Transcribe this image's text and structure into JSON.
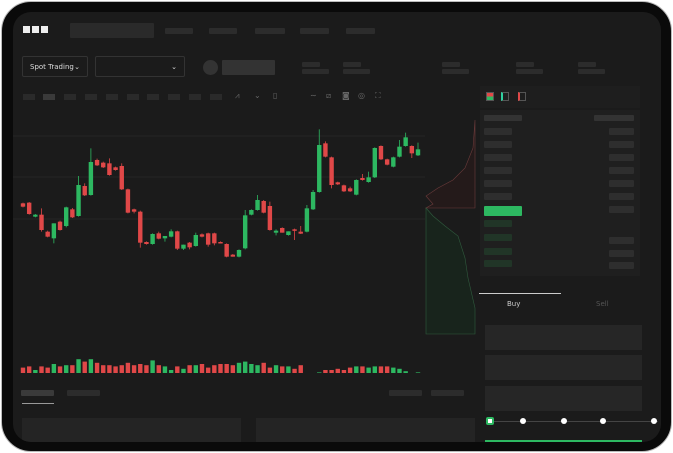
{
  "brand": {
    "logo_text": "OKX"
  },
  "header": {
    "market_selector": "Spot Trading"
  },
  "trade": {
    "tabs": [
      {
        "label": "Buy",
        "active": true
      },
      {
        "label": "Sell",
        "active": false
      }
    ],
    "leverage_steps": 5,
    "selected_step": 0
  },
  "colors": {
    "up": "#2db861",
    "down": "#e04848",
    "background": "#1b1b1b"
  },
  "icons": [
    "okx-logo",
    "chevron-down-icon",
    "indicator-icon",
    "line-icon",
    "ruler-icon",
    "camera-icon",
    "settings-icon",
    "fullscreen-icon",
    "orderbook-both-icon",
    "orderbook-bids-icon",
    "orderbook-asks-icon"
  ],
  "chart_data": {
    "type": "candlestick",
    "fields": [
      "open",
      "high",
      "low",
      "close"
    ],
    "candles": [
      [
        200,
        202,
        188,
        190
      ],
      [
        202,
        204,
        166,
        168
      ],
      [
        160,
        168,
        158,
        166
      ],
      [
        166,
        185,
        115,
        120
      ],
      [
        115,
        118,
        98,
        100
      ],
      [
        95,
        140,
        80,
        140
      ],
      [
        145,
        148,
        118,
        120
      ],
      [
        132,
        190,
        128,
        188
      ],
      [
        182,
        186,
        156,
        158
      ],
      [
        162,
        282,
        160,
        255
      ],
      [
        252,
        260,
        222,
        224
      ],
      [
        225,
        365,
        223,
        324
      ],
      [
        330,
        334,
        312,
        314
      ],
      [
        322,
        325,
        306,
        308
      ],
      [
        320,
        335,
        283,
        285
      ],
      [
        308,
        310,
        298,
        300
      ],
      [
        312,
        320,
        240,
        242
      ],
      [
        242,
        244,
        170,
        172
      ],
      [
        182,
        184,
        170,
        175
      ],
      [
        175,
        178,
        67,
        82
      ],
      [
        84,
        86,
        76,
        78
      ],
      [
        78,
        110,
        76,
        108
      ],
      [
        110,
        115,
        92,
        94
      ],
      [
        95,
        102,
        85,
        102
      ],
      [
        100,
        122,
        98,
        116
      ],
      [
        116,
        118,
        60,
        64
      ],
      [
        64,
        76,
        60,
        76
      ],
      [
        82,
        84,
        62,
        68
      ],
      [
        72,
        112,
        70,
        105
      ],
      [
        107,
        110,
        98,
        100
      ],
      [
        110,
        112,
        70,
        76
      ],
      [
        110,
        112,
        74,
        80
      ],
      [
        84,
        86,
        80,
        80
      ],
      [
        78,
        80,
        38,
        40
      ],
      [
        46,
        48,
        40,
        40
      ],
      [
        40,
        62,
        38,
        60
      ],
      [
        65,
        180,
        62,
        164
      ],
      [
        166,
        182,
        164,
        180
      ],
      [
        180,
        225,
        178,
        210
      ],
      [
        207,
        210,
        170,
        172
      ],
      [
        192,
        205,
        118,
        120
      ],
      [
        112,
        122,
        104,
        118
      ],
      [
        126,
        128,
        112,
        112
      ],
      [
        105,
        116,
        103,
        116
      ],
      [
        122,
        124,
        90,
        118
      ],
      [
        115,
        132,
        108,
        109
      ],
      [
        115,
        195,
        113,
        185
      ],
      [
        182,
        240,
        180,
        234
      ],
      [
        234,
        422,
        232,
        375
      ],
      [
        380,
        386,
        338,
        340
      ],
      [
        338,
        340,
        245,
        255
      ],
      [
        263,
        265,
        255,
        257
      ],
      [
        254,
        256,
        234,
        236
      ],
      [
        245,
        250,
        234,
        236
      ],
      [
        226,
        272,
        224,
        270
      ],
      [
        276,
        288,
        268,
        270
      ],
      [
        264,
        295,
        262,
        278
      ],
      [
        278,
        368,
        276,
        366
      ],
      [
        372,
        374,
        330,
        332
      ],
      [
        332,
        334,
        314,
        316
      ],
      [
        310,
        340,
        308,
        338
      ],
      [
        340,
        390,
        338,
        370
      ],
      [
        372,
        412,
        370,
        398
      ],
      [
        372,
        374,
        336,
        350
      ],
      [
        344,
        382,
        342,
        362
      ]
    ],
    "volume": [
      7,
      8,
      5,
      8,
      7,
      10,
      8,
      9,
      9,
      14,
      12,
      14,
      11,
      9,
      9,
      8,
      9,
      11,
      9,
      10,
      9,
      13,
      9,
      8,
      5,
      8,
      6,
      9,
      9,
      10,
      7,
      9,
      10,
      10,
      9,
      11,
      12,
      10,
      9,
      11,
      7,
      9,
      8,
      8,
      6,
      9,
      2,
      2,
      3,
      5,
      5,
      6,
      5,
      7,
      8,
      8,
      7,
      8,
      8,
      8,
      7,
      6,
      4,
      2,
      3
    ],
    "grid": true
  }
}
